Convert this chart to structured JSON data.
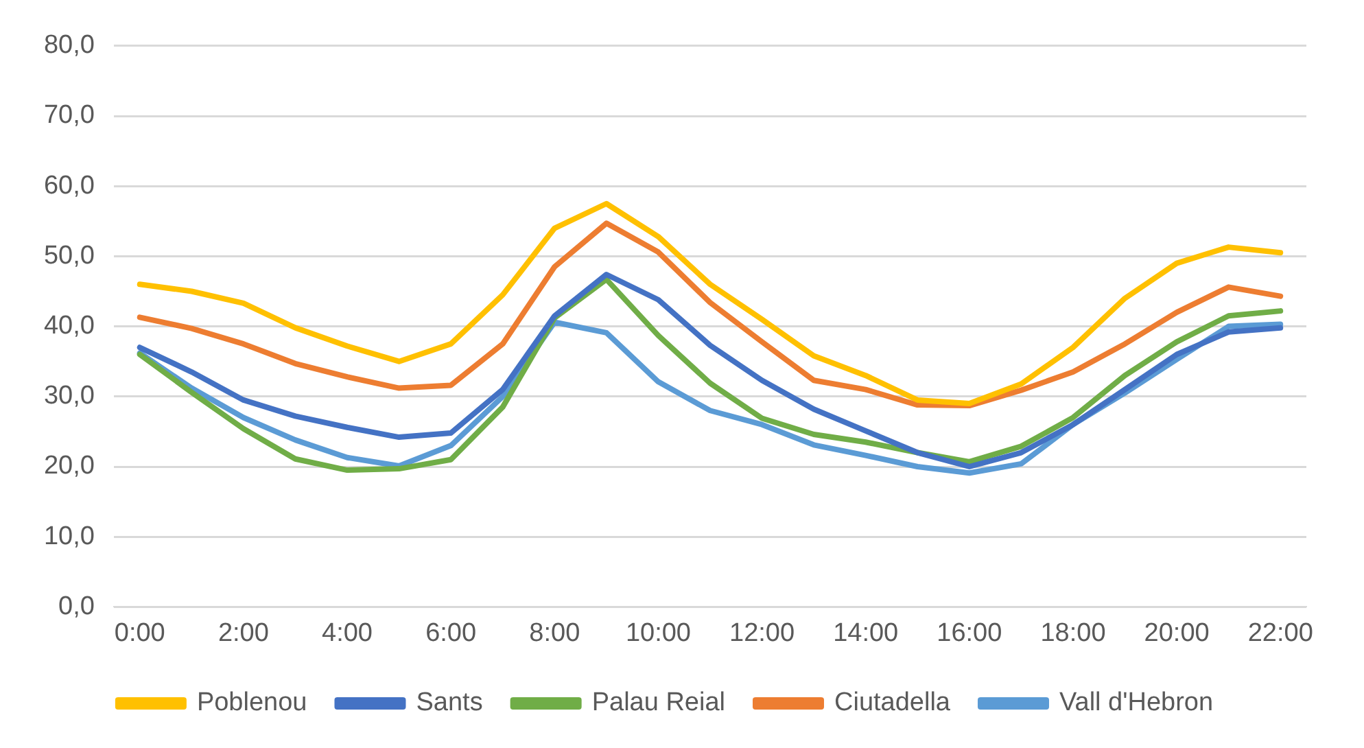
{
  "chart_data": {
    "type": "line",
    "categories": [
      "0:00",
      null,
      "2:00",
      null,
      "4:00",
      null,
      "6:00",
      null,
      "8:00",
      null,
      "10:00",
      null,
      "12:00",
      null,
      "14:00",
      null,
      "16:00",
      null,
      "18:00",
      null,
      "20:00",
      null,
      "22:00"
    ],
    "series": [
      {
        "name": "Poblenou",
        "color": "#ffc000",
        "values": [
          46,
          45,
          43.3,
          39.8,
          37.2,
          35,
          37.5,
          44.5,
          54,
          57.5,
          52.8,
          46,
          41,
          35.8,
          33,
          29.5,
          29,
          31.8,
          37,
          44,
          49,
          51.3,
          50.5
        ]
      },
      {
        "name": "Sants",
        "color": "#4472c4",
        "values": [
          37,
          33.5,
          29.5,
          27.2,
          25.6,
          24.2,
          24.8,
          31,
          41.5,
          47.4,
          43.8,
          37.3,
          32.3,
          28.2,
          25.1,
          22,
          20,
          22,
          26,
          31,
          36,
          39.2,
          39.8
        ]
      },
      {
        "name": "Palau Reial",
        "color": "#70ad47",
        "values": [
          36,
          30.6,
          25.4,
          21.1,
          19.5,
          19.7,
          21,
          28.5,
          41.2,
          46.7,
          38.7,
          31.9,
          26.9,
          24.6,
          23.5,
          22,
          20.7,
          22.9,
          27,
          33,
          37.8,
          41.5,
          42.2
        ]
      },
      {
        "name": "Ciutadella",
        "color": "#ed7d31",
        "values": [
          41.3,
          39.7,
          37.5,
          34.7,
          32.8,
          31.2,
          31.6,
          37.5,
          48.5,
          54.7,
          50.6,
          43.4,
          37.8,
          32.3,
          31,
          28.8,
          28.7,
          30.9,
          33.5,
          37.5,
          42,
          45.6,
          44.3
        ]
      },
      {
        "name": "Vall d'Hebron",
        "color": "#5b9bd5",
        "values": [
          36.2,
          31.2,
          27,
          23.8,
          21.3,
          20.1,
          23,
          30,
          40.6,
          39.1,
          32.1,
          28,
          26,
          23.1,
          21.6,
          20,
          19.1,
          20.4,
          26,
          30.5,
          35.3,
          40,
          40.3
        ]
      }
    ],
    "ylim": [
      0,
      80
    ],
    "yticks": [
      {
        "value": 0,
        "label": "0,0"
      },
      {
        "value": 10,
        "label": "10,0"
      },
      {
        "value": 20,
        "label": "20,0"
      },
      {
        "value": 30,
        "label": "30,0"
      },
      {
        "value": 40,
        "label": "40,0"
      },
      {
        "value": 50,
        "label": "50,0"
      },
      {
        "value": 60,
        "label": "60,0"
      },
      {
        "value": 70,
        "label": "70,0"
      },
      {
        "value": 80,
        "label": "80,0"
      }
    ],
    "grid": "y",
    "legend": "bottom",
    "marker": "none",
    "line_style": "solid"
  }
}
